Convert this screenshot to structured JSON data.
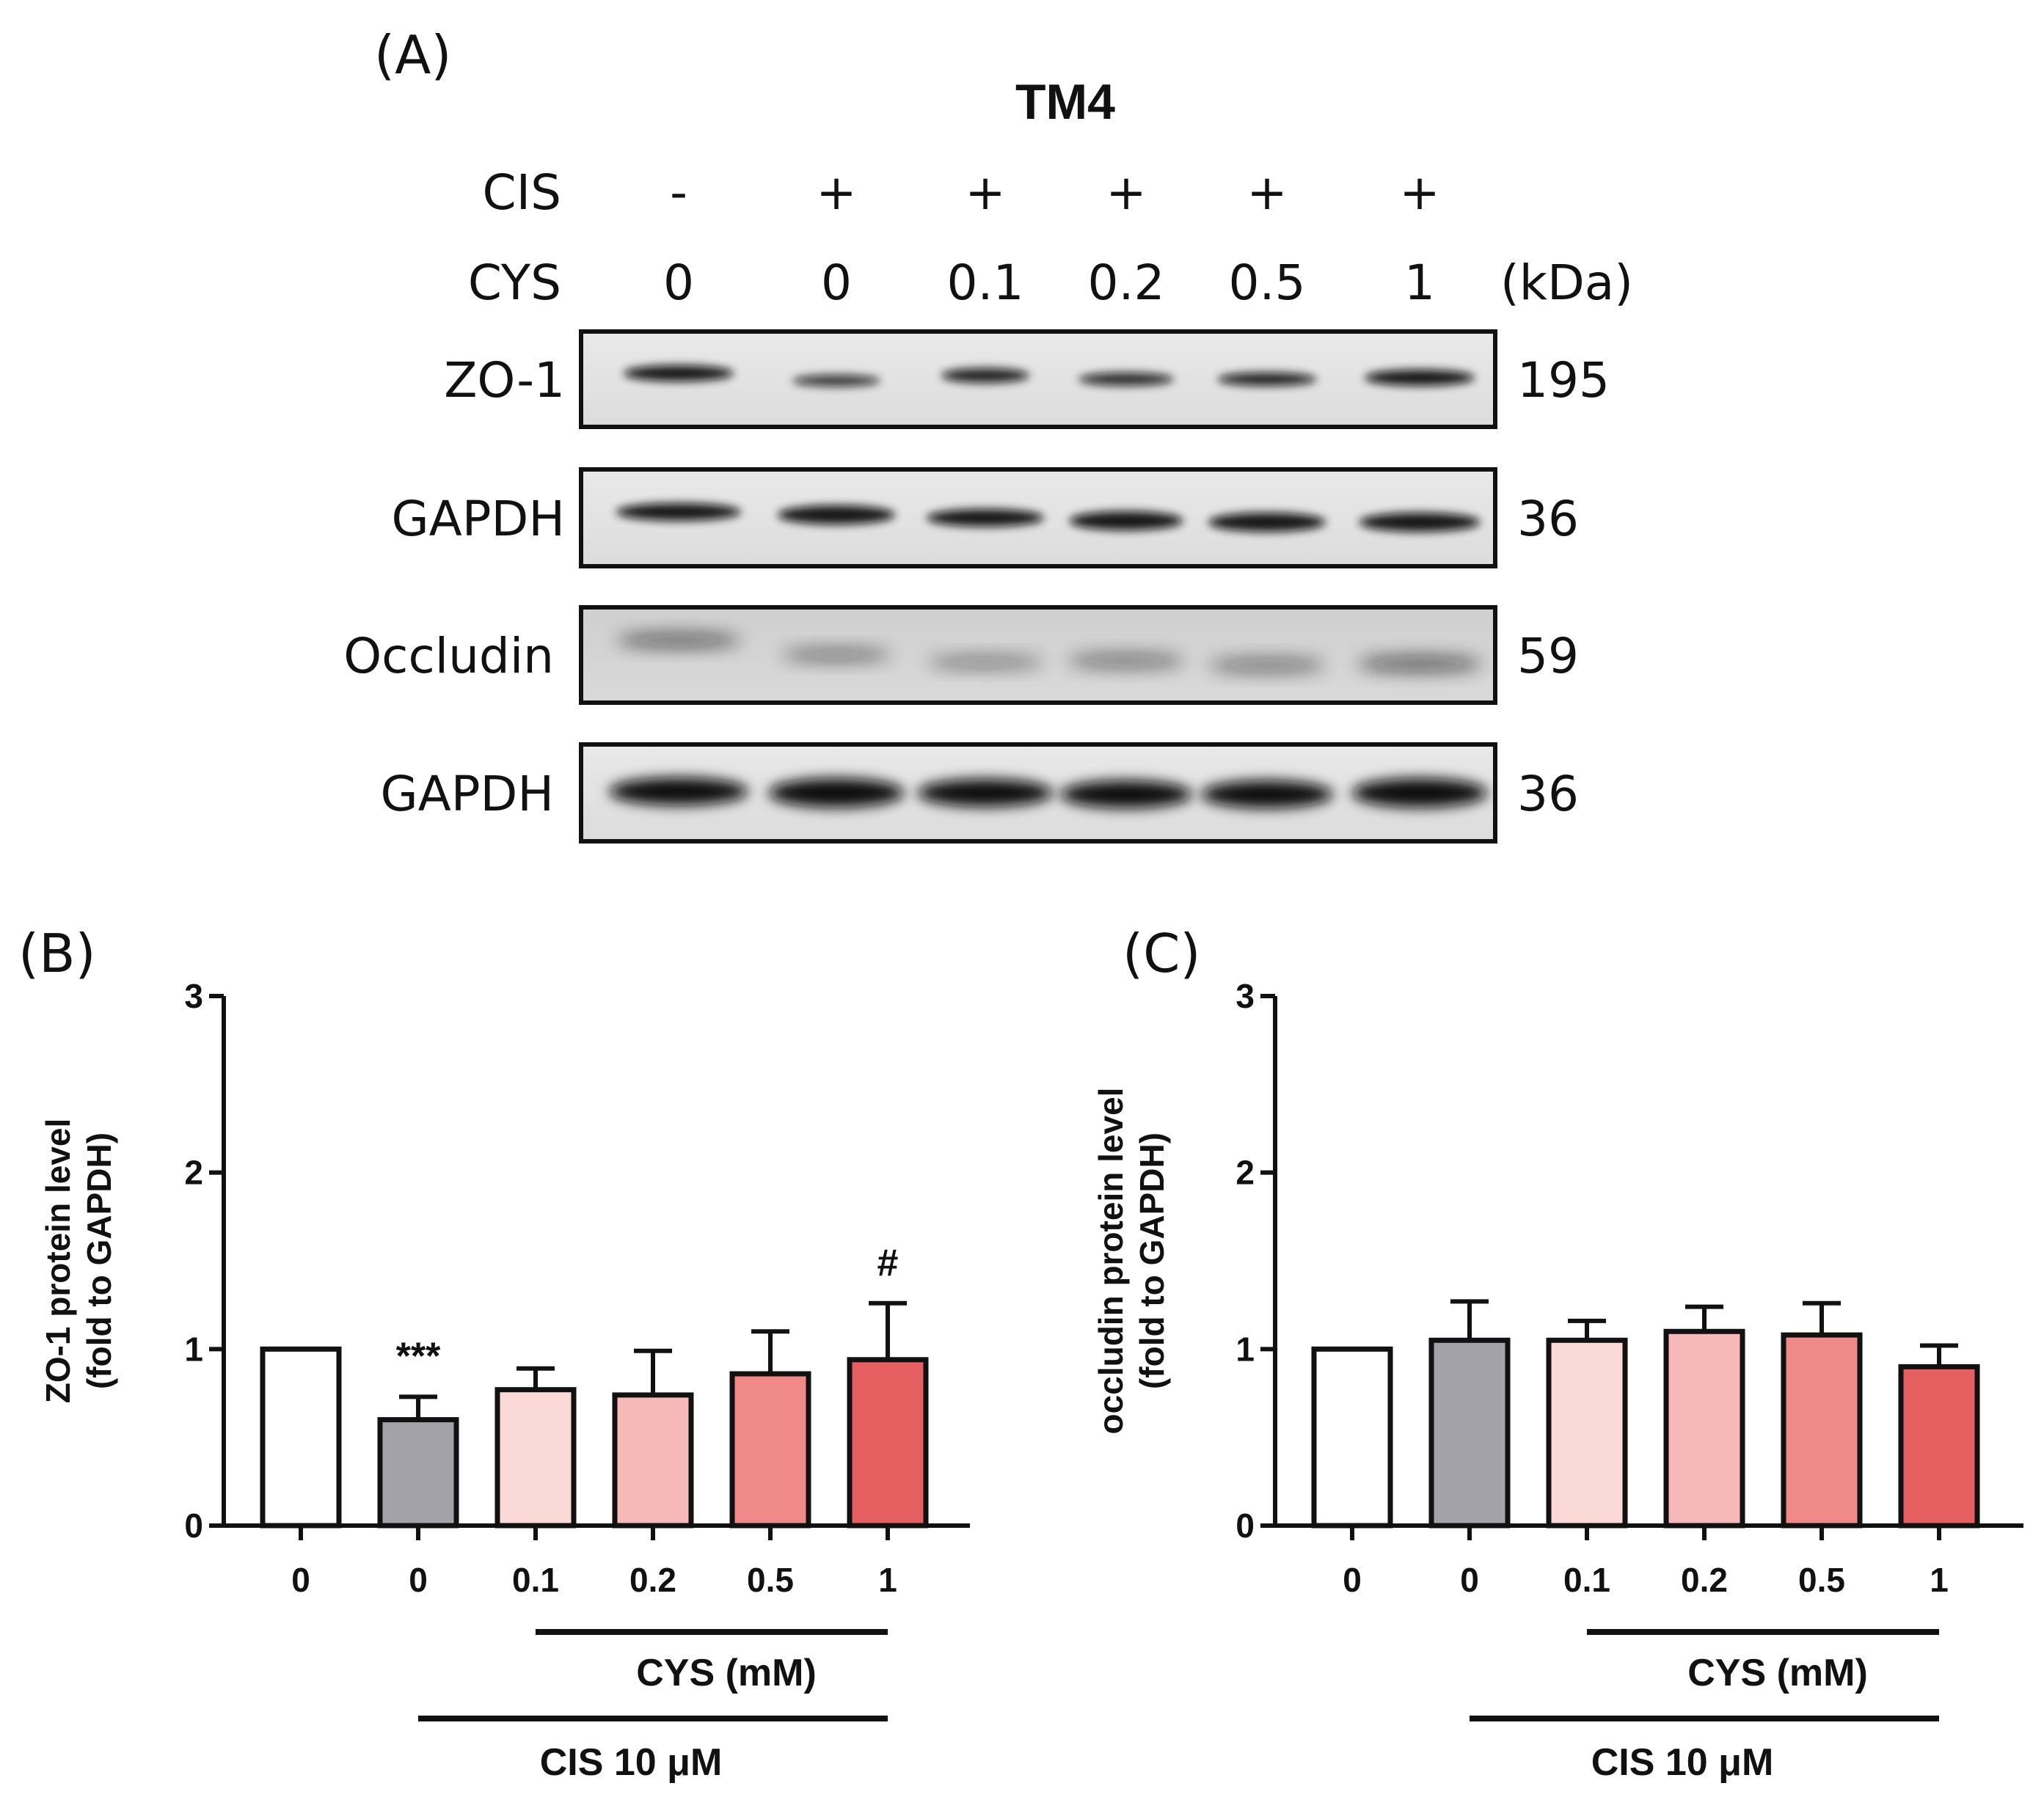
{
  "panel_a": {
    "label": "(A)",
    "title": "TM4",
    "row_labels": {
      "cis": "CIS",
      "cys": "CYS",
      "kda": "(kDa)"
    },
    "lanes": [
      {
        "cis": "-",
        "cys": "0"
      },
      {
        "cis": "+",
        "cys": "0"
      },
      {
        "cis": "+",
        "cys": "0.1"
      },
      {
        "cis": "+",
        "cys": "0.2"
      },
      {
        "cis": "+",
        "cys": "0.5"
      },
      {
        "cis": "+",
        "cys": "1"
      }
    ],
    "blots": [
      {
        "protein": "ZO-1",
        "kda": "195"
      },
      {
        "protein": "GAPDH",
        "kda": "36"
      },
      {
        "protein": "Occludin",
        "kda": "59"
      },
      {
        "protein": "GAPDH",
        "kda": "36"
      }
    ]
  },
  "chart_data": [
    {
      "type": "bar",
      "panel_label": "(B)",
      "ylabel_line1": "ZO-1 protein level",
      "ylabel_line2": "(fold to GAPDH)",
      "categories": [
        "0",
        "0",
        "0.1",
        "0.2",
        "0.5",
        "1"
      ],
      "values": [
        1.0,
        0.6,
        0.77,
        0.74,
        0.86,
        0.94
      ],
      "errors": [
        0.0,
        0.13,
        0.12,
        0.25,
        0.24,
        0.32
      ],
      "annotations": [
        "",
        "***",
        "",
        "",
        "",
        "#"
      ],
      "ylim": [
        0,
        3
      ],
      "yticks": [
        "0",
        "1",
        "2",
        "3"
      ],
      "bar_colors": [
        "#ffffff",
        "#a2a2a8",
        "#fadad6",
        "#f6b9b7",
        "#ef8a89",
        "#e65f60"
      ],
      "group_labels": {
        "inner": "CYS (mM)",
        "outer": "CIS 10 μM"
      }
    },
    {
      "type": "bar",
      "panel_label": "(C)",
      "ylabel_line1": "occludin protein level",
      "ylabel_line2": "(fold to GAPDH)",
      "categories": [
        "0",
        "0",
        "0.1",
        "0.2",
        "0.5",
        "1"
      ],
      "values": [
        1.0,
        1.05,
        1.05,
        1.1,
        1.08,
        0.9
      ],
      "errors": [
        0.0,
        0.22,
        0.11,
        0.14,
        0.18,
        0.12
      ],
      "annotations": [
        "",
        "",
        "",
        "",
        "",
        ""
      ],
      "ylim": [
        0,
        3
      ],
      "yticks": [
        "0",
        "1",
        "2",
        "3"
      ],
      "bar_colors": [
        "#ffffff",
        "#a2a2a8",
        "#fadad6",
        "#f6b9b7",
        "#ef8a89",
        "#e65f60"
      ],
      "group_labels": {
        "inner": "CYS (mM)",
        "outer": "CIS 10 μM"
      }
    }
  ]
}
